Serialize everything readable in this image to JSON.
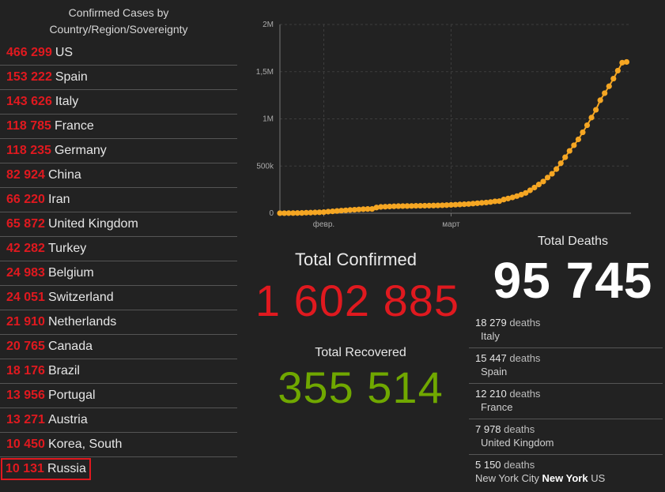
{
  "left_panel": {
    "title_line1": "Confirmed Cases by",
    "title_line2": "Country/Region/Sovereignty",
    "countries": [
      {
        "value": "466 299",
        "name": "US"
      },
      {
        "value": "153 222",
        "name": "Spain"
      },
      {
        "value": "143 626",
        "name": "Italy"
      },
      {
        "value": "118 785",
        "name": "France"
      },
      {
        "value": "118 235",
        "name": "Germany"
      },
      {
        "value": "82 924",
        "name": "China"
      },
      {
        "value": "66 220",
        "name": "Iran"
      },
      {
        "value": "65 872",
        "name": "United Kingdom"
      },
      {
        "value": "42 282",
        "name": "Turkey"
      },
      {
        "value": "24 983",
        "name": "Belgium"
      },
      {
        "value": "24 051",
        "name": "Switzerland"
      },
      {
        "value": "21 910",
        "name": "Netherlands"
      },
      {
        "value": "20 765",
        "name": "Canada"
      },
      {
        "value": "18 176",
        "name": "Brazil"
      },
      {
        "value": "13 956",
        "name": "Portugal"
      },
      {
        "value": "13 271",
        "name": "Austria"
      },
      {
        "value": "10 450",
        "name": "Korea, South"
      },
      {
        "value": "10 131",
        "name": "Russia"
      }
    ]
  },
  "totals": {
    "confirmed_label": "Total Confirmed",
    "confirmed_value": "1 602 885",
    "recovered_label": "Total Recovered",
    "recovered_value": "355 514",
    "deaths_label": "Total Deaths",
    "deaths_value": "95 745"
  },
  "deaths_list": [
    {
      "num": "18 279",
      "word": "deaths",
      "place": "Italy"
    },
    {
      "num": "15 447",
      "word": "deaths",
      "place": "Spain"
    },
    {
      "num": "12 210",
      "word": "deaths",
      "place": "France"
    },
    {
      "num": "7 978",
      "word": "deaths",
      "place": "United Kingdom"
    },
    {
      "num": "5 150",
      "word": "deaths",
      "place_city": "New York City",
      "place_state": "New York",
      "place_country": "US"
    }
  ],
  "colors": {
    "confirmed": "#e0191f",
    "recovered": "#70a800",
    "deaths": "#ffffff",
    "curve": "#f5a623"
  },
  "chart_data": {
    "type": "line",
    "y_tick_labels": [
      "0",
      "500k",
      "1M",
      "1,5M",
      "2M"
    ],
    "y_ticks": [
      0,
      500000,
      1000000,
      1500000,
      2000000
    ],
    "x_tick_labels": [
      "февр.",
      "март"
    ],
    "x_ticks": [
      10,
      39
    ],
    "ylim": [
      0,
      2000000
    ],
    "xlim": [
      0,
      80
    ],
    "x": [
      0,
      1,
      2,
      3,
      4,
      5,
      6,
      7,
      8,
      9,
      10,
      11,
      12,
      13,
      14,
      15,
      16,
      17,
      18,
      19,
      20,
      21,
      22,
      23,
      24,
      25,
      26,
      27,
      28,
      29,
      30,
      31,
      32,
      33,
      34,
      35,
      36,
      37,
      38,
      39,
      40,
      41,
      42,
      43,
      44,
      45,
      46,
      47,
      48,
      49,
      50,
      51,
      52,
      53,
      54,
      55,
      56,
      57,
      58,
      59,
      60,
      61,
      62,
      63,
      64,
      65,
      66,
      67,
      68,
      69,
      70,
      71,
      72,
      73,
      74,
      75,
      76,
      77,
      78,
      79
    ],
    "values": [
      555,
      654,
      941,
      1434,
      2118,
      2927,
      5578,
      6166,
      8234,
      9927,
      12038,
      16787,
      19881,
      23892,
      27635,
      30794,
      34391,
      37120,
      40150,
      42762,
      44802,
      45221,
      60368,
      66885,
      69030,
      71224,
      73258,
      75136,
      75639,
      76197,
      76823,
      78579,
      78965,
      79570,
      80415,
      81397,
      82756,
      84124,
      86013,
      88371,
      90309,
      92844,
      95124,
      97886,
      101800,
      105836,
      109835,
      113582,
      118582,
      125865,
      128343,
      145193,
      156094,
      167446,
      181527,
      197142,
      214910,
      242708,
      272166,
      304524,
      335955,
      378287,
      417966,
      467594,
      529591,
      593291,
      660706,
      720117,
      782365,
      857487,
      932605,
      1013466,
      1095917,
      1197405,
      1272115,
      1345101,
      1426096,
      1511104,
      1595350,
      1602885
    ],
    "grid": true,
    "marker": "circle"
  }
}
